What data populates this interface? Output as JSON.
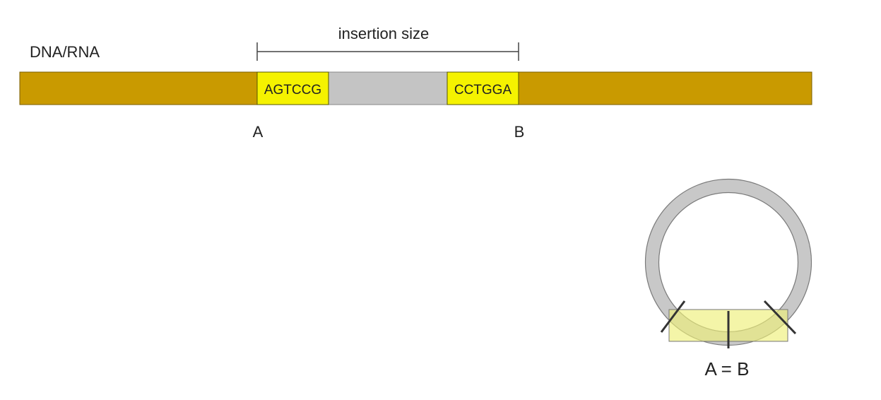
{
  "molecule_label": "DNA/RNA",
  "insertion_label": "insertion size",
  "left_sequence": "AGTCCG",
  "right_sequence": "CCTGGA",
  "point_a": "A",
  "point_b": "B",
  "circle_label": "A = B",
  "colors": {
    "strand": "#c99a00",
    "flank": "#f5f200",
    "insert": "#c4c4c4",
    "circle": "#c8c8c8",
    "junction_overlay": "#eef07a",
    "lines": "#333333"
  }
}
